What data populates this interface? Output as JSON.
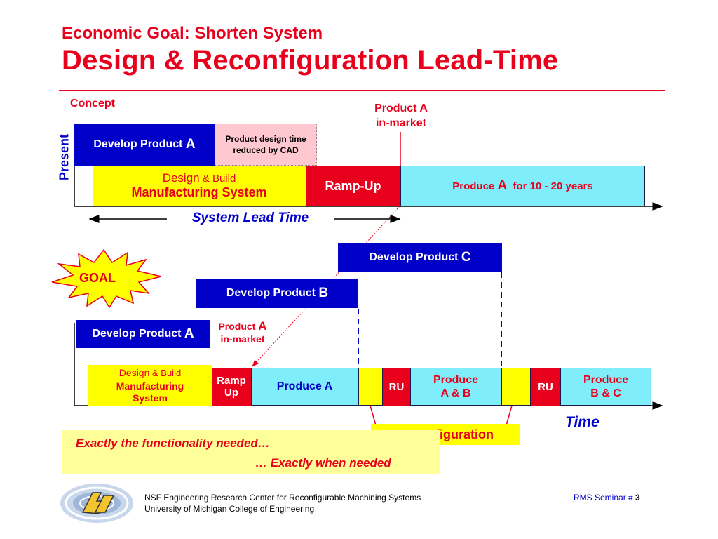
{
  "title": {
    "line1": "Economic Goal: Shorten System",
    "line2": "Design & Reconfiguration Lead-Time"
  },
  "present": {
    "side_label": "Present",
    "concept_label": "Concept",
    "develop_prefix": "Develop Product ",
    "develop_letter": "A",
    "cad_note": "Product design time reduced by CAD",
    "design_word": "Design",
    "design_rest": " & Build",
    "design_line2": "Manufacturing System",
    "rampup": "Ramp-Up",
    "produce_prefix": "Produce ",
    "produce_letter": "A",
    "produce_suffix": "  for 10 - 20 years",
    "inmarket_line1": "Product A",
    "inmarket_line2": "in-market",
    "lead_time": "System Lead Time"
  },
  "goal": {
    "badge": "GOAL",
    "develop_c_prefix": "Develop Product ",
    "develop_c_letter": "C",
    "develop_b_prefix": "Develop Product ",
    "develop_b_letter": "B",
    "develop_a_prefix": "Develop Product ",
    "develop_a_letter": "A",
    "inmarket_prefix": "Product ",
    "inmarket_letter": "A",
    "inmarket_line2": "in-market",
    "design_word": "Design",
    "design_rest": " & Build",
    "design_line2": "Manufacturing",
    "design_line3": "System",
    "ramp_line1": "Ramp",
    "ramp_line2": "Up",
    "produce_a": "Produce A",
    "ru1": "RU",
    "produce_ab_line1": "Produce",
    "produce_ab_line2": "A & B",
    "ru2": "RU",
    "produce_bc_line1": "Produce",
    "produce_bc_line2": "B & C",
    "time_label": "Time",
    "reconfiguration": "Reconfiguration"
  },
  "tagline": {
    "line1": "Exactly the functionality needed…",
    "line2": "… Exactly when needed"
  },
  "footer": {
    "org_line1": "NSF Engineering Research Center for Reconfigurable Machining Systems",
    "org_line2": "University of Michigan College of Engineering",
    "seminar_prefix": "RMS Seminar # ",
    "seminar_number": "3"
  },
  "colors": {
    "accent_red": "#e8001c",
    "dark_blue": "#0000c8",
    "cyan": "#80eefa",
    "yellow": "#ffff00",
    "pale_yellow": "#ffff99",
    "pink": "#ffc8d0"
  }
}
